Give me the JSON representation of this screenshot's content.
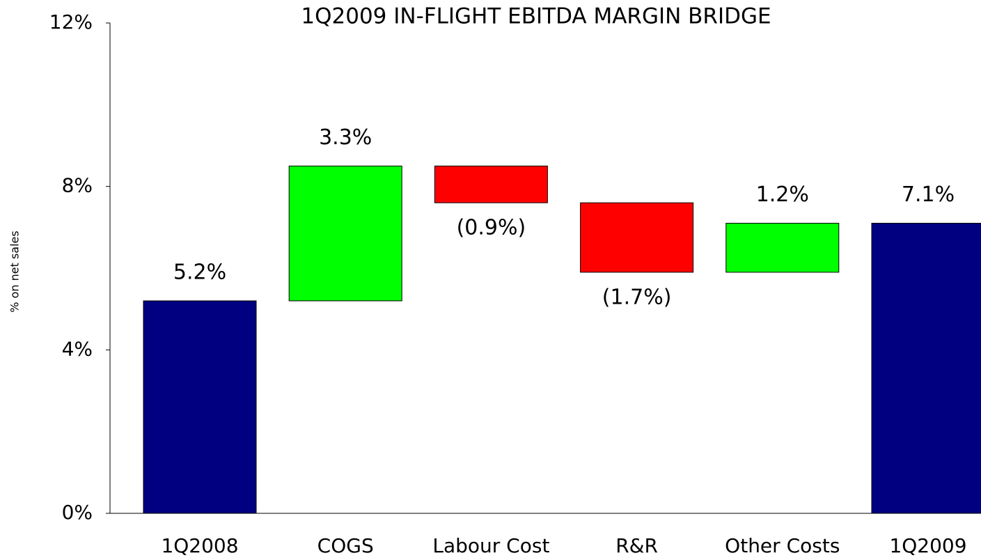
{
  "chart_data": {
    "type": "waterfall",
    "title": "1Q2009 IN-FLIGHT EBITDA MARGIN BRIDGE",
    "y_label": "% on net sales",
    "categories": [
      "1Q2008",
      "COGS",
      "Labour Cost",
      "R&R",
      "Other Costs",
      "1Q2009"
    ],
    "values": [
      5.2,
      3.3,
      -0.9,
      -1.7,
      1.2,
      7.1
    ],
    "value_labels": [
      "5.2%",
      "3.3%",
      "(0.9%)",
      "(1.7%)",
      "1.2%",
      "7.1%"
    ],
    "measure": [
      "absolute",
      "relative",
      "relative",
      "relative",
      "relative",
      "total"
    ],
    "total_color": "#000080",
    "increase_color": "#00ff00",
    "decrease_color": "#ff0000",
    "title_color": "#ff0000",
    "ylim": [
      0,
      12
    ],
    "yticks": [
      {
        "value": 0,
        "label": "0%"
      },
      {
        "value": 4,
        "label": "4%"
      },
      {
        "value": 8,
        "label": "8%"
      },
      {
        "value": 12,
        "label": "12%"
      }
    ],
    "grid": false
  }
}
